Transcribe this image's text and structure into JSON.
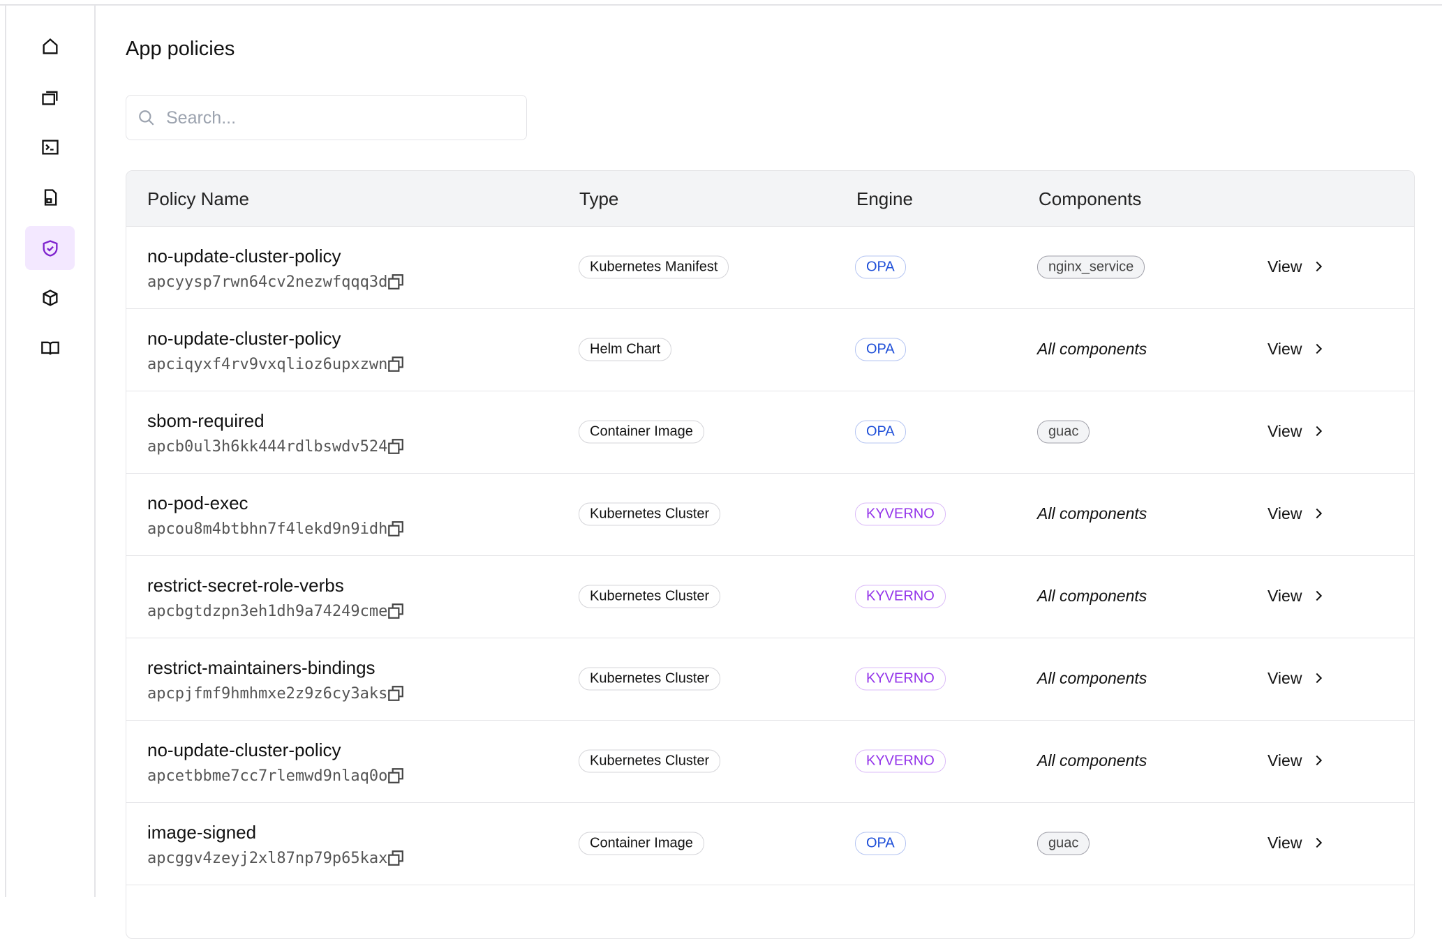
{
  "header": {
    "title": "App policies"
  },
  "search": {
    "placeholder": "Search..."
  },
  "table": {
    "columns": [
      "Policy Name",
      "Type",
      "Engine",
      "Components"
    ],
    "engine_colors": {
      "OPA": "#1d4ed8",
      "KYVERNO": "#9333ea"
    },
    "rows": [
      {
        "name": "no-update-cluster-policy",
        "id": "apcyysp7rwn64cv2nezwfqqq3d",
        "type": "Kubernetes Manifest",
        "engine": "OPA",
        "components": [
          "nginx_service"
        ],
        "action": "View"
      },
      {
        "name": "no-update-cluster-policy",
        "id": "apciqyxf4rv9vxqlioz6upxzwn",
        "type": "Helm Chart",
        "engine": "OPA",
        "components": "All components",
        "action": "View"
      },
      {
        "name": "sbom-required",
        "id": "apcb0ul3h6kk444rdlbswdv524",
        "type": "Container Image",
        "engine": "OPA",
        "components": [
          "guac"
        ],
        "action": "View"
      },
      {
        "name": "no-pod-exec",
        "id": "apcou8m4btbhn7f4lekd9n9idh",
        "type": "Kubernetes Cluster",
        "engine": "KYVERNO",
        "components": "All components",
        "action": "View"
      },
      {
        "name": "restrict-secret-role-verbs",
        "id": "apcbgtdzpn3eh1dh9a74249cme",
        "type": "Kubernetes Cluster",
        "engine": "KYVERNO",
        "components": "All components",
        "action": "View"
      },
      {
        "name": "restrict-maintainers-bindings",
        "id": "apcpjfmf9hmhmxe2z9z6cy3aks",
        "type": "Kubernetes Cluster",
        "engine": "KYVERNO",
        "components": "All components",
        "action": "View"
      },
      {
        "name": "no-update-cluster-policy",
        "id": "apcetbbme7cc7rlemwd9nlaq0o",
        "type": "Kubernetes Cluster",
        "engine": "KYVERNO",
        "components": "All components",
        "action": "View"
      },
      {
        "name": "image-signed",
        "id": "apcggv4zeyj2xl87np79p65kax",
        "type": "Container Image",
        "engine": "OPA",
        "components": [
          "guac"
        ],
        "action": "View"
      }
    ]
  }
}
